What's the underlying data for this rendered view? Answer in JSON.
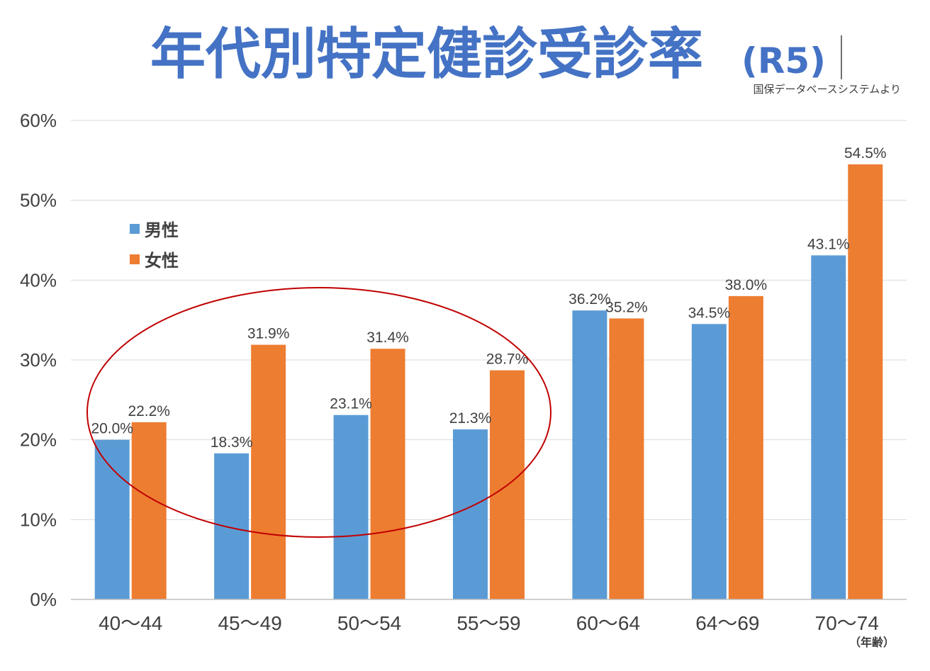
{
  "title": {
    "main": "年代別特定健診受診率",
    "suffix": "(R5)",
    "source": "国保データベースシステムより",
    "color": "#4472c4"
  },
  "chart_data": {
    "type": "bar",
    "categories": [
      "40～44",
      "45～49",
      "50～54",
      "55～59",
      "60～64",
      "64～69",
      "70～74"
    ],
    "series": [
      {
        "name": "男性",
        "color": "#5b9bd5",
        "values": [
          20.0,
          18.3,
          23.1,
          21.3,
          36.2,
          34.5,
          43.1
        ],
        "labels": [
          "20.0%",
          "18.3%",
          "23.1%",
          "21.3%",
          "36.2%",
          "34.5%",
          "43.1%"
        ]
      },
      {
        "name": "女性",
        "color": "#ed7d31",
        "values": [
          22.2,
          31.9,
          31.4,
          28.7,
          35.2,
          38.0,
          54.5
        ],
        "labels": [
          "22.2%",
          "31.9%",
          "31.4%",
          "28.7%",
          "35.2%",
          "38.0%",
          "54.5%"
        ]
      }
    ],
    "ylim": [
      0,
      60
    ],
    "yticks": [
      "0%",
      "10%",
      "20%",
      "30%",
      "40%",
      "50%",
      "60%"
    ],
    "xlabel": "（年齢）",
    "grid": true,
    "legend_position": "top-left",
    "annotation": {
      "type": "ellipse",
      "color": "#c00000",
      "covers_categories": [
        "40～44",
        "45～49",
        "50～54",
        "55～59"
      ]
    }
  }
}
